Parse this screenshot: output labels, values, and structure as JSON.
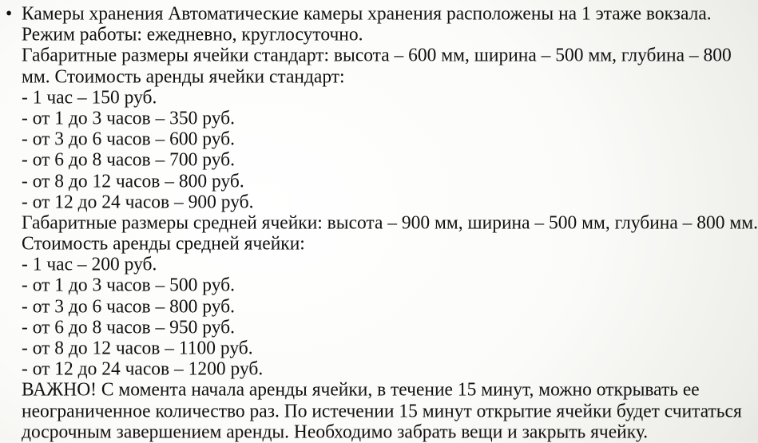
{
  "bullet": "•",
  "lines": [
    "Камеры хранения Автоматические камеры хранения расположены на 1 этаже вокзала.",
    "Режим работы: ежедневно, круглосуточно.",
    "Габаритные размеры ячейки стандарт: высота – 600 мм, ширина – 500 мм, глубина – 800",
    "мм. Стоимость аренды ячейки стандарт:",
    "- 1 час – 150 руб.",
    "- от 1 до 3 часов – 350 руб.",
    "- от 3 до 6 часов – 600 руб.",
    "- от 6 до 8 часов – 700 руб.",
    "- от 8 до 12 часов – 800 руб.",
    "- от 12 до 24 часов – 900 руб.",
    "Габаритные размеры средней ячейки: высота – 900 мм, ширина – 500 мм, глубина – 800 мм.",
    "Стоимость аренды средней ячейки:",
    "- 1 час – 200 руб.",
    "- от 1 до 3 часов – 500 руб.",
    "- от 3 до 6 часов – 800 руб.",
    "- от 6 до 8 часов – 950 руб.",
    "- от 8 до 12 часов – 1100 руб.",
    "- от 12 до 24 часов – 1200 руб.",
    "ВАЖНО! С момента начала аренды ячейки, в течение 15 минут, можно открывать ее",
    "неограниченное количество раз. По истечении 15 минут открытие ячейки будет считаться",
    "досрочным завершением аренды. Необходимо забрать вещи и закрыть ячейку."
  ]
}
